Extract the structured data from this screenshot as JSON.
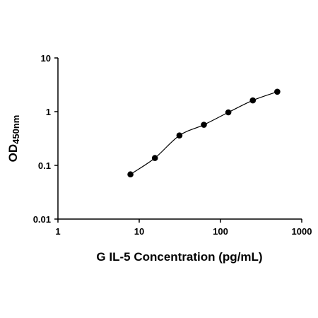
{
  "chart_data": {
    "type": "scatter",
    "xlabel": "G IL-5 Concentration (pg/mL)",
    "ylabel": {
      "main": "OD",
      "subscript": "450nm"
    },
    "xscale": "log",
    "yscale": "log",
    "xlim": [
      1,
      1000
    ],
    "ylim": [
      0.01,
      10
    ],
    "x_ticks": [
      {
        "value": 1,
        "label": "1"
      },
      {
        "value": 10,
        "label": "10"
      },
      {
        "value": 100,
        "label": "100"
      },
      {
        "value": 1000,
        "label": "1000"
      }
    ],
    "y_ticks": [
      {
        "value": 0.01,
        "label": "0.01"
      },
      {
        "value": 0.1,
        "label": "0.1"
      },
      {
        "value": 1,
        "label": "1"
      },
      {
        "value": 10,
        "label": "10"
      }
    ],
    "grid": false,
    "legend": "none",
    "series": [
      {
        "points": [
          {
            "x": 7.8,
            "y": 0.068
          },
          {
            "x": 15.6,
            "y": 0.137
          },
          {
            "x": 31.25,
            "y": 0.36
          },
          {
            "x": 62.5,
            "y": 0.57
          },
          {
            "x": 125,
            "y": 0.97
          },
          {
            "x": 250,
            "y": 1.62
          },
          {
            "x": 500,
            "y": 2.35
          }
        ],
        "fit_curve": {
          "type": "4PL",
          "x_range": [
            7.8,
            500
          ]
        }
      }
    ],
    "colors": {
      "marker": "#000000",
      "line": "#000000",
      "axis": "#000000"
    }
  }
}
